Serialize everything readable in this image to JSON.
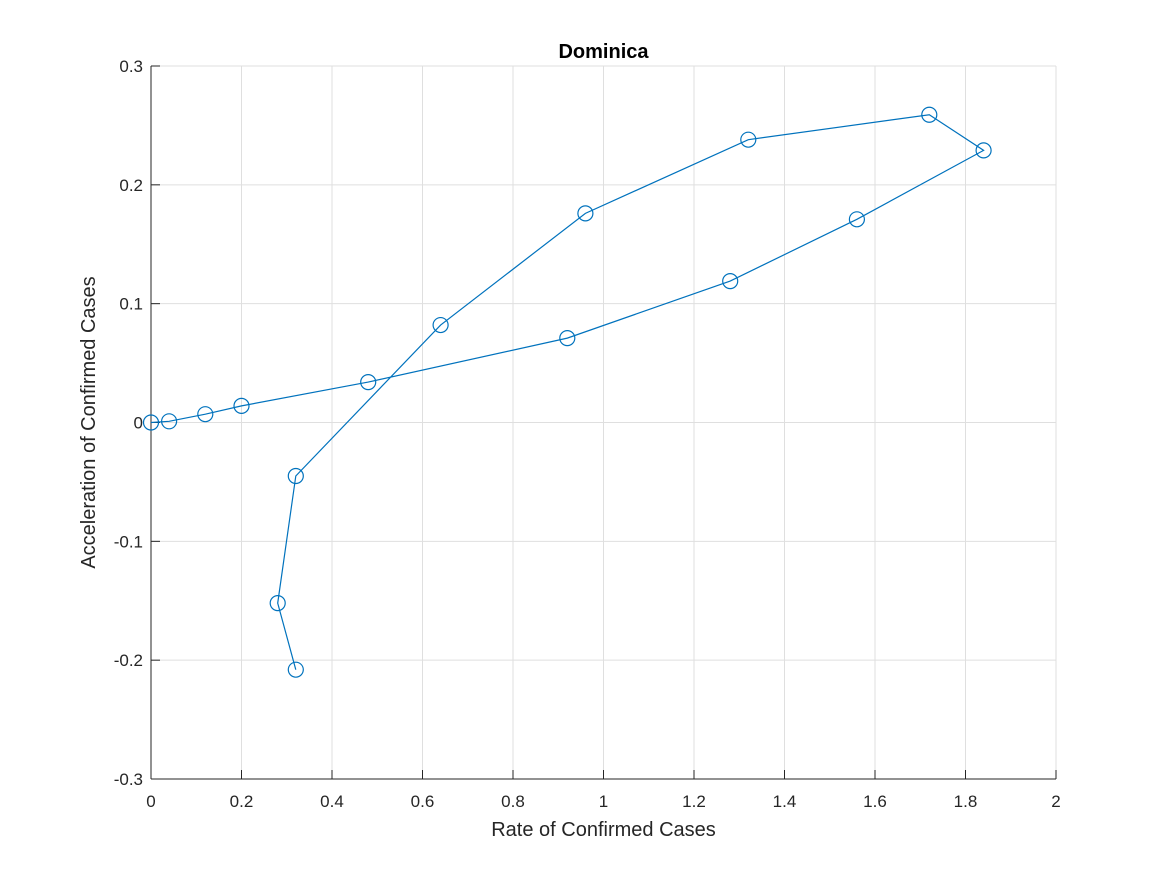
{
  "chart_data": {
    "type": "scatter",
    "title": "Dominica",
    "xlabel": "Rate of Confirmed Cases",
    "ylabel": "Acceleration of Confirmed Cases",
    "xlim": [
      0,
      2
    ],
    "ylim": [
      -0.3,
      0.3
    ],
    "xticks": [
      0,
      0.2,
      0.4,
      0.6,
      0.8,
      1,
      1.2,
      1.4,
      1.6,
      1.8,
      2
    ],
    "yticks": [
      -0.3,
      -0.2,
      -0.1,
      0,
      0.1,
      0.2,
      0.3
    ],
    "xtick_labels": [
      "0",
      "0.2",
      "0.4",
      "0.6",
      "0.8",
      "1",
      "1.2",
      "1.4",
      "1.6",
      "1.8",
      "2"
    ],
    "ytick_labels": [
      "-0.3",
      "-0.2",
      "-0.1",
      "0",
      "0.1",
      "0.2",
      "0.3"
    ],
    "grid": true,
    "line_color": "#0072BD",
    "marker": "circle",
    "series": [
      {
        "x": [
          0,
          0.04,
          0.12,
          0.2,
          0.48,
          0.92,
          1.28,
          1.56,
          1.84,
          1.72,
          1.32,
          0.96,
          0.64,
          0.32,
          0.28,
          0.32
        ],
        "y": [
          0,
          0.001,
          0.007,
          0.014,
          0.034,
          0.071,
          0.119,
          0.171,
          0.229,
          0.259,
          0.238,
          0.176,
          0.082,
          -0.045,
          -0.152,
          -0.208
        ]
      }
    ]
  }
}
